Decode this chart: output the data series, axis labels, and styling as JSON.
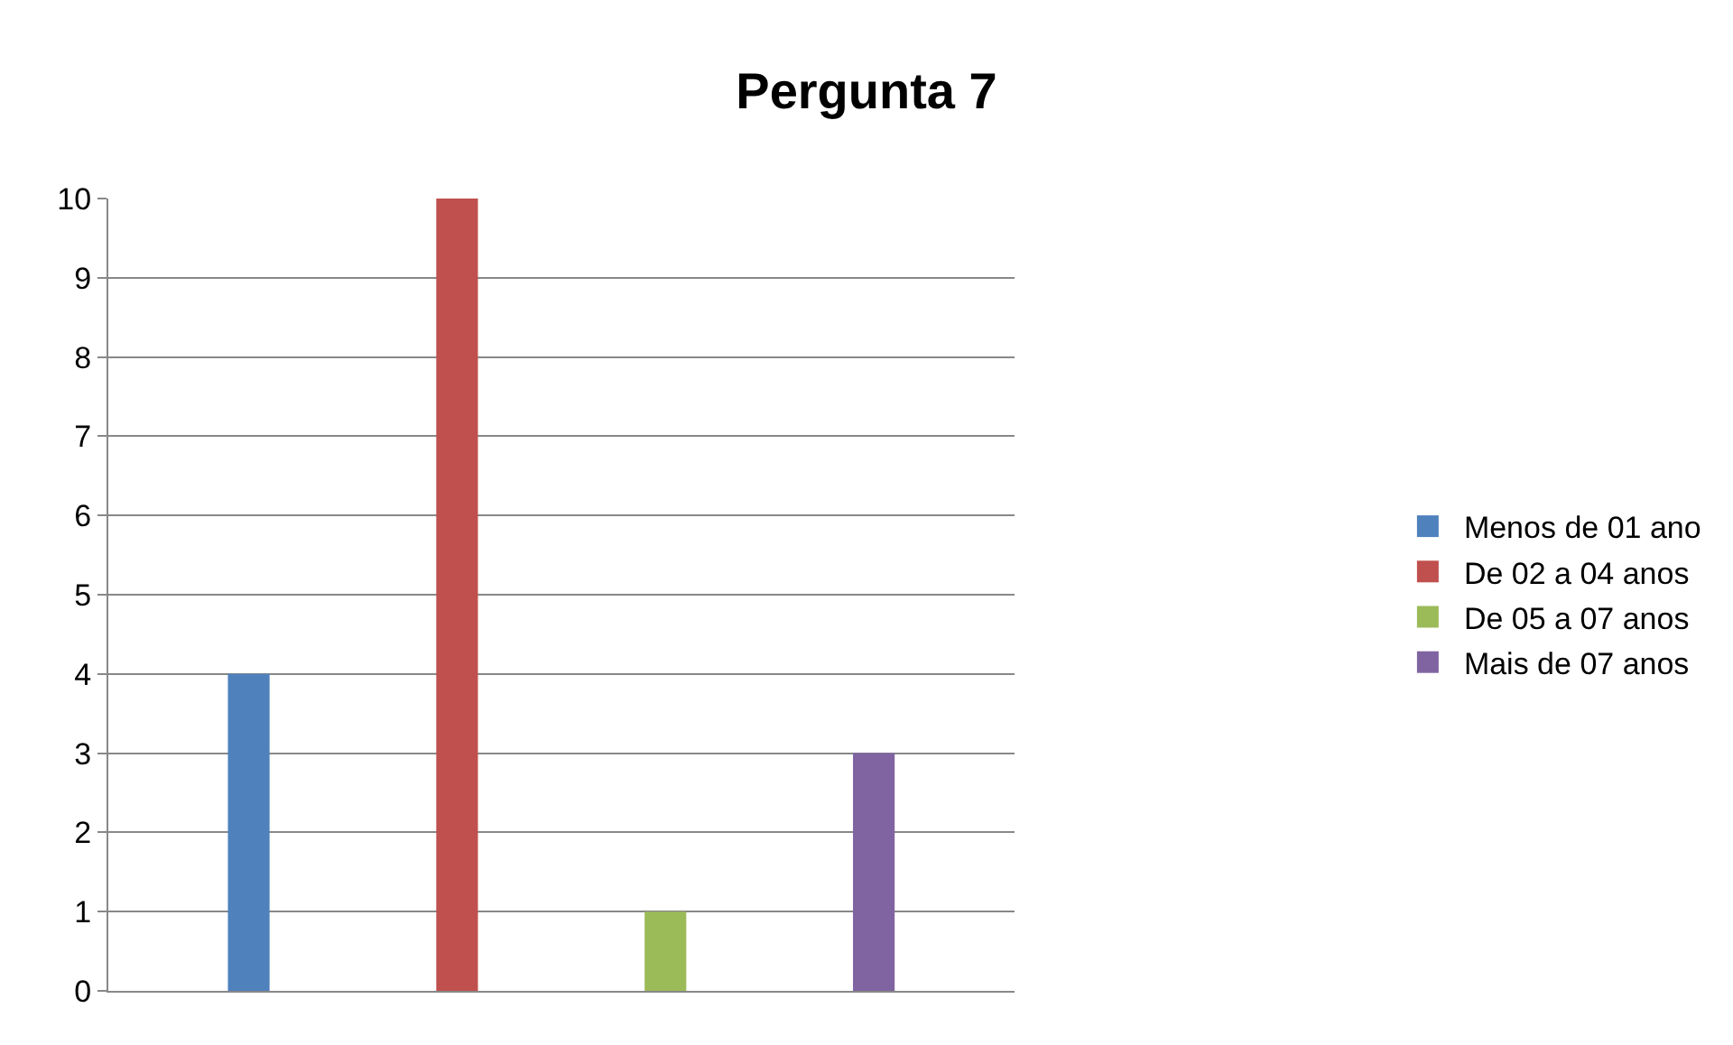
{
  "chart_data": {
    "type": "bar",
    "title": "Pergunta 7",
    "categories": [
      null
    ],
    "series": [
      {
        "name": "Menos de 01 ano",
        "color": "#4f81bd",
        "values": [
          4
        ]
      },
      {
        "name": "De 02 a 04 anos",
        "color": "#c0504d",
        "values": [
          10
        ]
      },
      {
        "name": "De 05 a 07 anos",
        "color": "#9bbb59",
        "values": [
          1
        ]
      },
      {
        "name": "Mais de 07 anos",
        "color": "#8064a2",
        "values": [
          3
        ]
      }
    ],
    "ylim": [
      0,
      10
    ],
    "yticks": [
      0,
      1,
      2,
      3,
      4,
      5,
      6,
      7,
      8,
      9,
      10
    ],
    "grid": "y",
    "legend": "right"
  }
}
